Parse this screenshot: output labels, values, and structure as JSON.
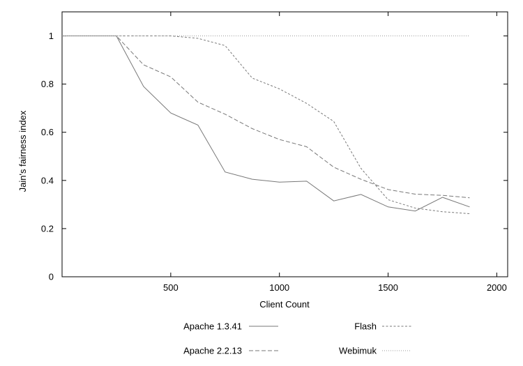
{
  "chart_data": {
    "type": "line",
    "title": "",
    "xlabel": "Client Count",
    "ylabel": "Jain's fairness index",
    "xlim": [
      0,
      2050
    ],
    "ylim": [
      0,
      1.1
    ],
    "x_ticks": [
      500,
      1000,
      1500,
      2000
    ],
    "y_ticks": [
      0,
      0.2,
      0.4,
      0.6,
      0.8,
      1
    ],
    "grid": false,
    "legend_position": "bottom",
    "series": [
      {
        "name": "Apache 1.3.41",
        "style": "solid",
        "color": "#777777",
        "x": [
          0,
          250,
          375,
          500,
          625,
          750,
          875,
          1000,
          1125,
          1250,
          1375,
          1500,
          1625,
          1750,
          1875
        ],
        "y": [
          1.0,
          1.0,
          0.79,
          0.68,
          0.63,
          0.435,
          0.405,
          0.393,
          0.397,
          0.315,
          0.342,
          0.29,
          0.273,
          0.33,
          0.29
        ]
      },
      {
        "name": "Apache 2.2.13",
        "style": "dashed",
        "color": "#777777",
        "x": [
          0,
          250,
          375,
          500,
          625,
          750,
          875,
          1000,
          1125,
          1250,
          1375,
          1500,
          1625,
          1750,
          1875
        ],
        "y": [
          1.0,
          1.0,
          0.88,
          0.83,
          0.725,
          0.675,
          0.615,
          0.57,
          0.54,
          0.455,
          0.405,
          0.362,
          0.343,
          0.338,
          0.328
        ]
      },
      {
        "name": "Flash",
        "style": "short-dashed",
        "color": "#777777",
        "x": [
          0,
          250,
          375,
          500,
          625,
          750,
          875,
          1000,
          1125,
          1250,
          1375,
          1500,
          1625,
          1750,
          1875
        ],
        "y": [
          1.0,
          1.0,
          1.0,
          1.0,
          0.99,
          0.96,
          0.825,
          0.78,
          0.72,
          0.645,
          0.45,
          0.32,
          0.285,
          0.27,
          0.262
        ]
      },
      {
        "name": "Webimuk",
        "style": "dotted",
        "color": "#999999",
        "x": [
          0,
          250,
          375,
          500,
          625,
          750,
          875,
          1000,
          1125,
          1250,
          1375,
          1500,
          1625,
          1750,
          1875
        ],
        "y": [
          1.0,
          1.0,
          1.0,
          1.0,
          1.0,
          1.0,
          1.0,
          1.0,
          1.0,
          1.0,
          1.0,
          1.0,
          1.0,
          1.0,
          1.0
        ]
      }
    ]
  }
}
